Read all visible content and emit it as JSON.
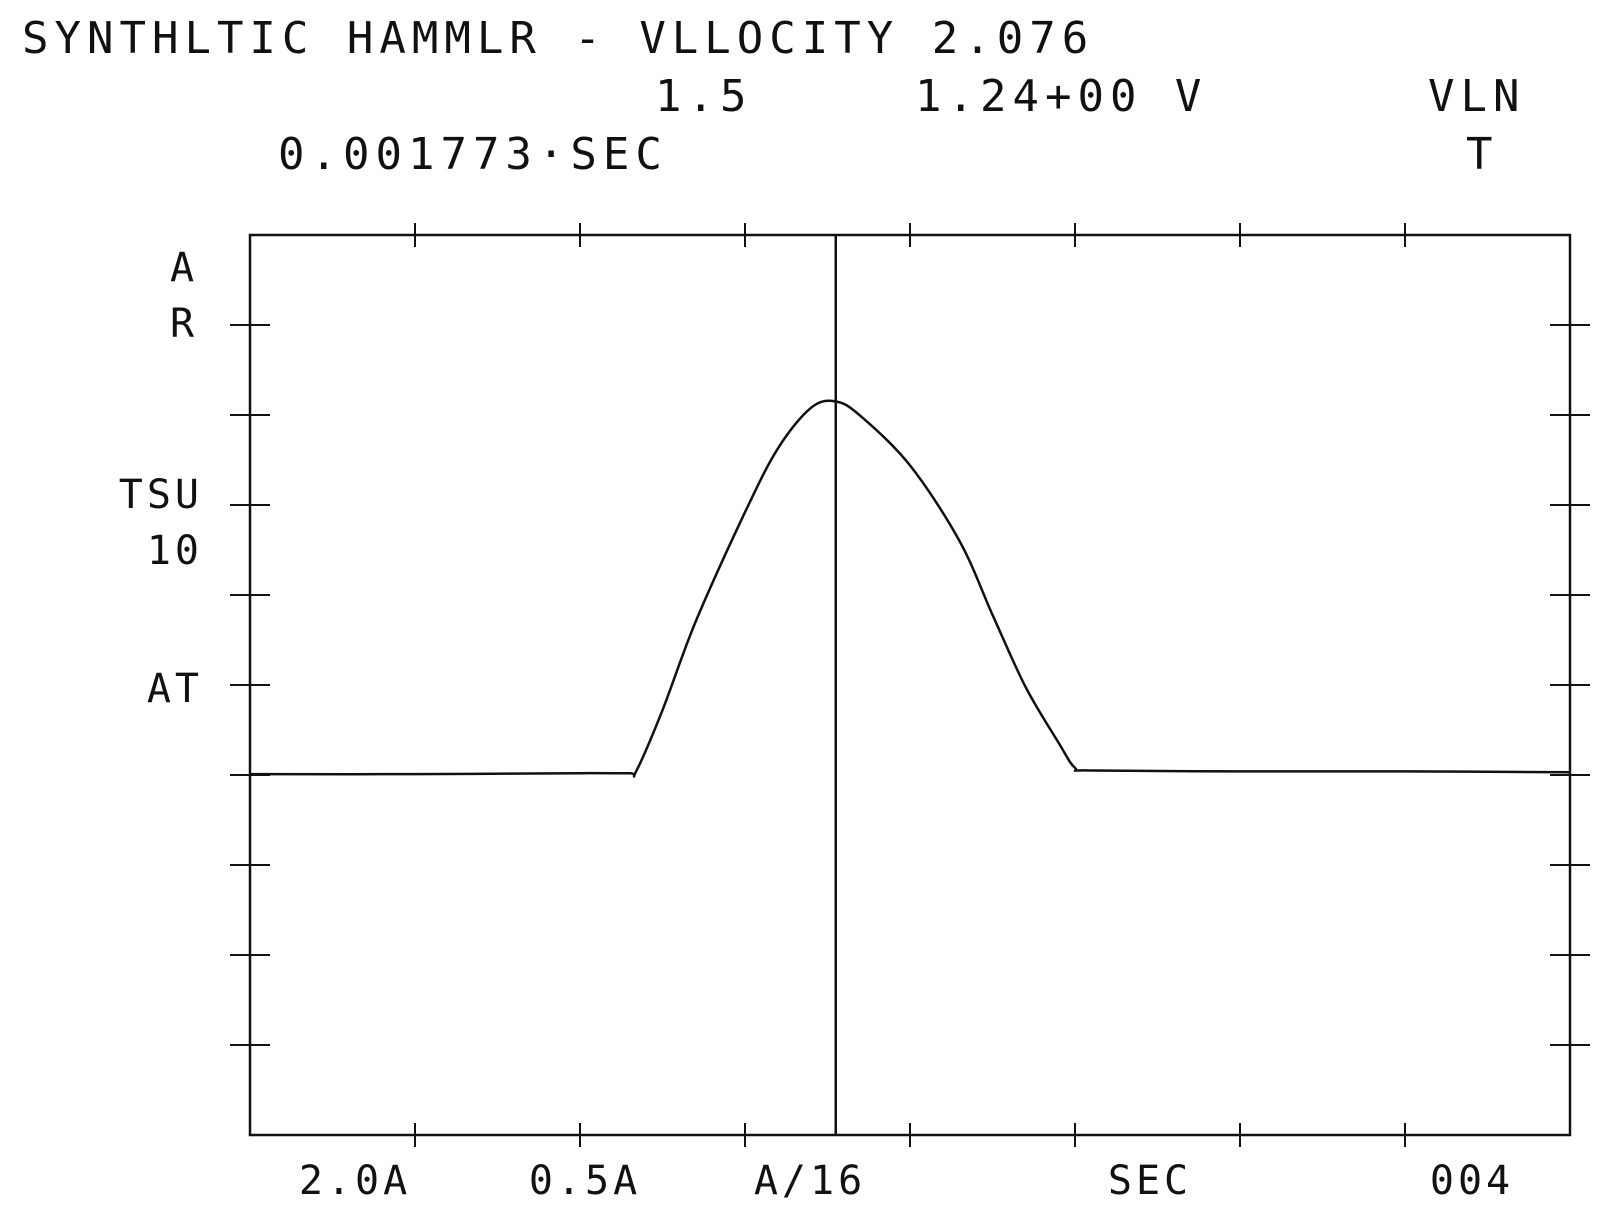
{
  "header": {
    "title": "SYNTHLTIC HAMMLR - VLLOCITY 2.076",
    "scale": "1.5",
    "cursor_value": "1.24+00 V",
    "mode": "VLN",
    "cursor_time": "0.001773·SEC",
    "mode_sub": "T"
  },
  "y_labels": {
    "a": "A",
    "r": "R",
    "tsu": "TSU",
    "ten": "10",
    "at": "AT"
  },
  "x_labels": {
    "range": "2.0A",
    "offset": "0.5A",
    "per_div": "A/16",
    "unit": "SEC",
    "page": "004"
  },
  "colors": {
    "ink": "#111111",
    "background": "#ffffff"
  },
  "chart_data": {
    "type": "line",
    "title": "SYNTHLTIC HAMMLR - VLLOCITY 2.076",
    "grid": false,
    "divisions": {
      "x": 8,
      "y": 10
    },
    "xlim": [
      0,
      8
    ],
    "ylim": [
      -5,
      5
    ],
    "cursor_x": 3.55,
    "series": [
      {
        "values": [
          [
            0.0,
            -0.99
          ],
          [
            1.0,
            -0.99
          ],
          [
            2.0,
            -0.98
          ],
          [
            2.3,
            -0.98
          ],
          [
            2.34,
            -0.96
          ],
          [
            2.5,
            -0.28
          ],
          [
            2.7,
            0.7
          ],
          [
            3.0,
            1.92
          ],
          [
            3.2,
            2.63
          ],
          [
            3.4,
            3.08
          ],
          [
            3.55,
            3.15
          ],
          [
            3.7,
            2.99
          ],
          [
            4.0,
            2.44
          ],
          [
            4.3,
            1.6
          ],
          [
            4.5,
            0.78
          ],
          [
            4.7,
            -0.02
          ],
          [
            4.9,
            -0.64
          ],
          [
            5.0,
            -0.92
          ],
          [
            5.1,
            -0.95
          ],
          [
            6.0,
            -0.96
          ],
          [
            7.0,
            -0.96
          ],
          [
            8.0,
            -0.97
          ]
        ]
      }
    ]
  }
}
